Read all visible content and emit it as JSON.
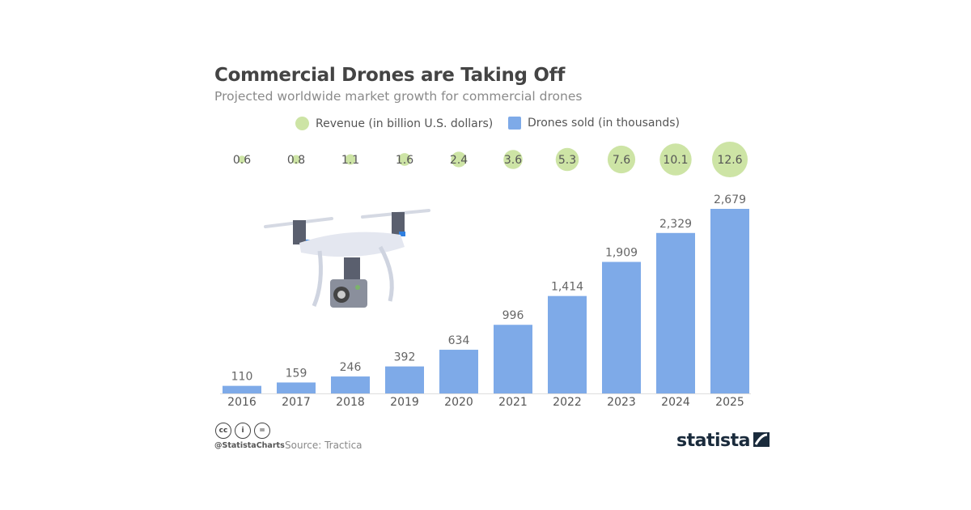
{
  "chart_data": {
    "type": "bar",
    "title": "Commercial Drones are Taking Off",
    "subtitle": "Projected worldwide market growth for commercial drones",
    "categories": [
      "2016",
      "2017",
      "2018",
      "2019",
      "2020",
      "2021",
      "2022",
      "2023",
      "2024",
      "2025"
    ],
    "series": [
      {
        "name": "Revenue (in billion U.S. dollars)",
        "type": "bubble",
        "color": "#cde4a5",
        "values": [
          0.6,
          0.8,
          1.1,
          1.6,
          2.4,
          3.6,
          5.3,
          7.6,
          10.1,
          12.6
        ],
        "labels": [
          "0.6",
          "0.8",
          "1.1",
          "1.6",
          "2.4",
          "3.6",
          "5.3",
          "7.6",
          "10.1",
          "12.6"
        ]
      },
      {
        "name": "Drones sold (in thousands)",
        "type": "bar",
        "color": "#7eaae8",
        "values": [
          110,
          159,
          246,
          392,
          634,
          996,
          1414,
          1909,
          2329,
          2679
        ],
        "labels": [
          "110",
          "159",
          "246",
          "392",
          "634",
          "996",
          "1,414",
          "1,909",
          "2,329",
          "2,679"
        ]
      }
    ],
    "legend_placement": "top",
    "grid": false
  },
  "footer": {
    "handle": "@StatistaCharts",
    "source": "Source: Tractica",
    "cc": [
      "cc",
      "i",
      "="
    ],
    "brand": "statista"
  }
}
